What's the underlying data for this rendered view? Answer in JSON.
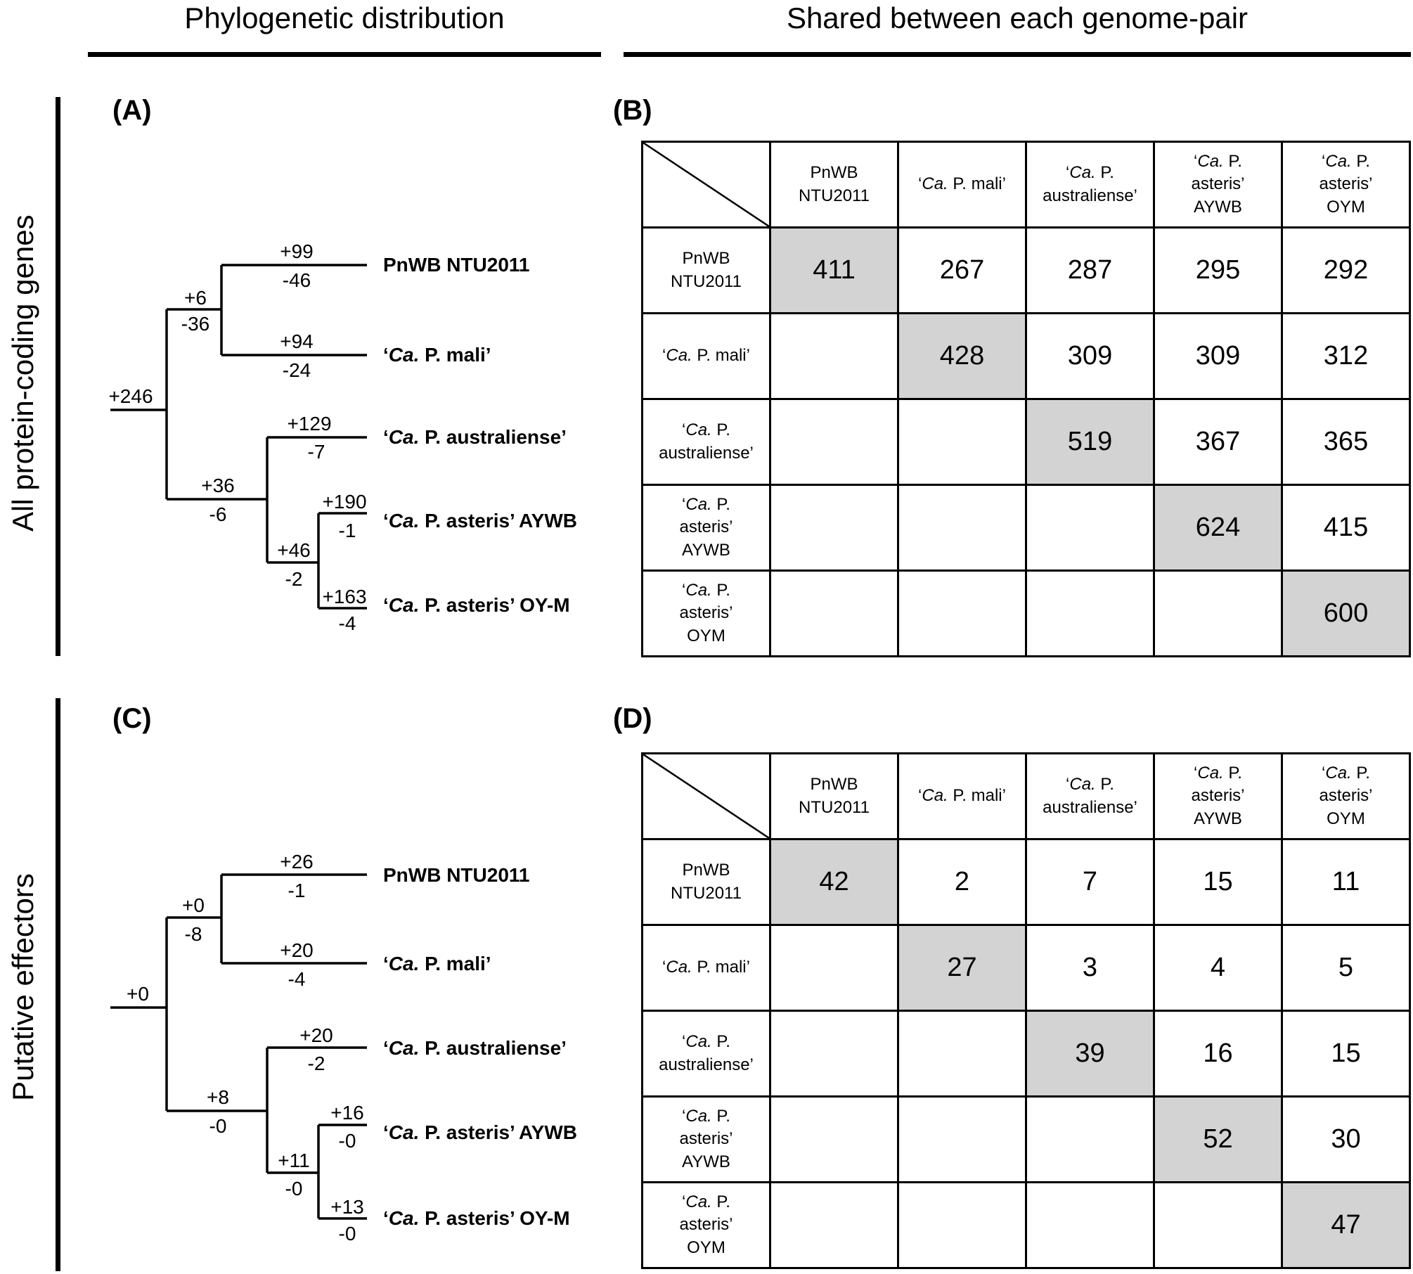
{
  "headers": {
    "left": "Phylogenetic distribution",
    "right": "Shared between each genome-pair"
  },
  "row_labels": {
    "top": "All protein-coding genes",
    "bottom": "Putative effectors"
  },
  "panels": {
    "a": "(A)",
    "b": "(B)",
    "c": "(C)",
    "d": "(D)"
  },
  "taxa": {
    "pnwb": "PnWB NTU2011",
    "mali": "‘Ca. P. mali’",
    "australiense": "‘Ca. P. australiense’",
    "aywb": "‘Ca. P. asteris’ AYWB",
    "oym": "‘Ca. P. asteris’ OY-M"
  },
  "matrix_labels": [
    {
      "l1": "PnWB",
      "l2": "NTU2011",
      "l3": ""
    },
    {
      "l1": "‘Ca. P. mali’",
      "l2": "",
      "l3": ""
    },
    {
      "l1": "‘Ca. P.",
      "l2": "australiense’",
      "l3": ""
    },
    {
      "l1": "‘Ca. P.",
      "l2": "asteris’",
      "l3": "AYWB"
    },
    {
      "l1": "‘Ca. P.",
      "l2": "asteris’",
      "l3": "OYM"
    }
  ],
  "tree_a": {
    "root": "+246",
    "clade1_gain": "+6",
    "clade1_loss": "-36",
    "pnwb_gain": "+99",
    "pnwb_loss": "-46",
    "mali_gain": "+94",
    "mali_loss": "-24",
    "clade2_gain": "+36",
    "clade2_loss": "-6",
    "aus_gain": "+129",
    "aus_loss": "-7",
    "clade3_gain": "+46",
    "clade3_loss": "-2",
    "aywb_gain": "+190",
    "aywb_loss": "-1",
    "oym_gain": "+163",
    "oym_loss": "-4"
  },
  "tree_c": {
    "root": "+0",
    "clade1_gain": "+0",
    "clade1_loss": "-8",
    "pnwb_gain": "+26",
    "pnwb_loss": "-1",
    "mali_gain": "+20",
    "mali_loss": "-4",
    "clade2_gain": "+8",
    "clade2_loss": "-0",
    "aus_gain": "+20",
    "aus_loss": "-2",
    "clade3_gain": "+11",
    "clade3_loss": "-0",
    "aywb_gain": "+16",
    "aywb_loss": "-0",
    "oym_gain": "+13",
    "oym_loss": "-0"
  },
  "matrix_b": {
    "r0": {
      "c0": "411",
      "c1": "267",
      "c2": "287",
      "c3": "295",
      "c4": "292"
    },
    "r1": {
      "c1": "428",
      "c2": "309",
      "c3": "309",
      "c4": "312"
    },
    "r2": {
      "c2": "519",
      "c3": "367",
      "c4": "365"
    },
    "r3": {
      "c3": "624",
      "c4": "415"
    },
    "r4": {
      "c4": "600"
    }
  },
  "matrix_d": {
    "r0": {
      "c0": "42",
      "c1": "2",
      "c2": "7",
      "c3": "15",
      "c4": "11"
    },
    "r1": {
      "c1": "27",
      "c2": "3",
      "c3": "4",
      "c4": "5"
    },
    "r2": {
      "c2": "39",
      "c3": "16",
      "c4": "15"
    },
    "r3": {
      "c3": "52",
      "c4": "30"
    },
    "r4": {
      "c4": "47"
    }
  },
  "colors": {
    "diagonal_fill": "#d3d3d3",
    "line": "#000000"
  }
}
